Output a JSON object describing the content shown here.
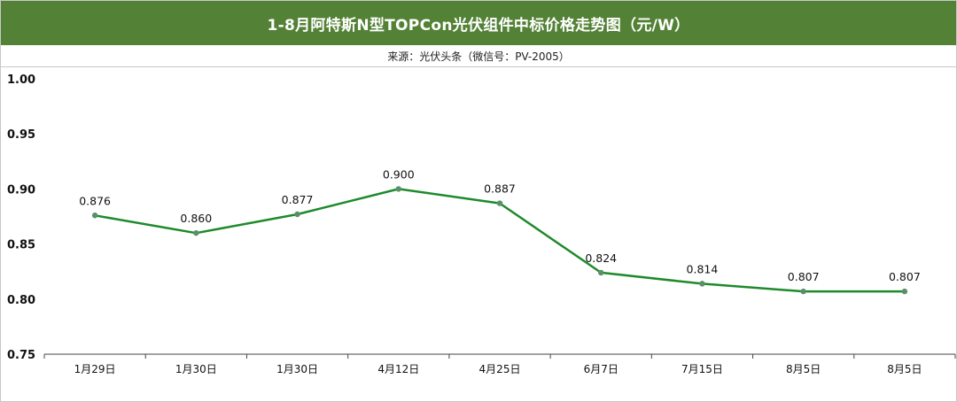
{
  "title": "1-8月阿特斯N型TOPCon光伏组件中标价格走势图（元/W）",
  "subtitle": "来源：光伏头条（微信号：PV-2005）",
  "colors": {
    "title_bg": "#538135",
    "line": "#1e8a2b",
    "marker": "#5a8f6a",
    "axis": "#444444"
  },
  "chart_data": {
    "type": "line",
    "categories": [
      "1月29日",
      "1月30日",
      "1月30日",
      "4月12日",
      "4月25日",
      "6月7日",
      "7月15日",
      "8月5日",
      "8月5日"
    ],
    "series": [
      {
        "values": [
          0.876,
          0.86,
          0.877,
          0.9,
          0.887,
          0.824,
          0.814,
          0.807,
          0.807
        ]
      }
    ],
    "data_labels": [
      "0.876",
      "0.860",
      "0.877",
      "0.900",
      "0.887",
      "0.824",
      "0.814",
      "0.807",
      "0.807"
    ],
    "ylim": [
      0.75,
      1.0
    ],
    "yticks": [
      "0.75",
      "0.80",
      "0.85",
      "0.90",
      "0.95",
      "1.00"
    ],
    "ytick_values": [
      0.75,
      0.8,
      0.85,
      0.9,
      0.95,
      1.0
    ],
    "grid": false,
    "xlabel": "",
    "ylabel": ""
  }
}
